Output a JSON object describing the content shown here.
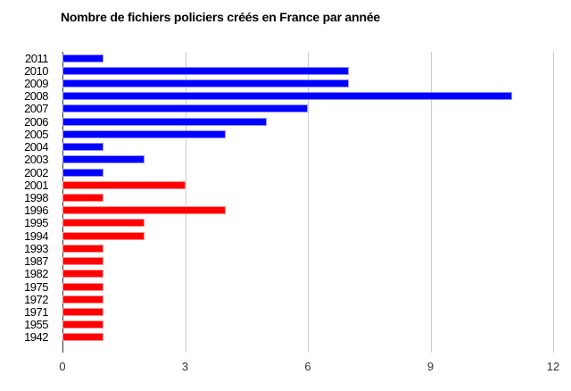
{
  "chart_data": {
    "type": "bar",
    "orientation": "horizontal",
    "title": "Nombre de fichiers policiers créés en France par année",
    "categories": [
      "2011",
      "2010",
      "2009",
      "2008",
      "2007",
      "2006",
      "2005",
      "2004",
      "2003",
      "2002",
      "2001",
      "1998",
      "1996",
      "1995",
      "1994",
      "1993",
      "1987",
      "1982",
      "1975",
      "1972",
      "1971",
      "1955",
      "1942"
    ],
    "values": [
      1,
      7,
      7,
      11,
      6,
      5,
      4,
      1,
      2,
      1,
      3,
      1,
      4,
      2,
      2,
      1,
      1,
      1,
      1,
      1,
      1,
      1,
      1
    ],
    "bar_colors": [
      "#0000ff",
      "#0000ff",
      "#0000ff",
      "#0000ff",
      "#0000ff",
      "#0000ff",
      "#0000ff",
      "#0000ff",
      "#0000ff",
      "#0000ff",
      "#ff0000",
      "#ff0000",
      "#ff0000",
      "#ff0000",
      "#ff0000",
      "#ff0000",
      "#ff0000",
      "#ff0000",
      "#ff0000",
      "#ff0000",
      "#ff0000",
      "#ff0000",
      "#ff0000"
    ],
    "color_recent_years": "#0000ff",
    "color_older_years": "#ff0000",
    "xlabel": "",
    "ylabel": "",
    "x_ticks": [
      0,
      3,
      6,
      9,
      12
    ],
    "xlim": [
      0,
      12
    ],
    "grid": true,
    "gridline_color": "#cccccc",
    "axis_line_color": "#333333",
    "background_color": "#ffffff"
  }
}
